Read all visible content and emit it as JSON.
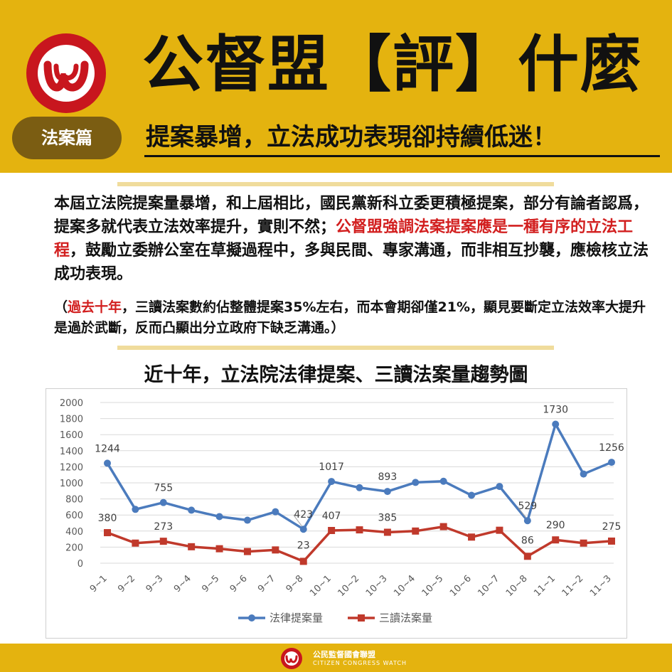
{
  "header": {
    "logo_icon": "citizen-congress-watch-logo-icon",
    "title": "公督盟【評】什麼",
    "category_badge": "法案篇",
    "subtitle": "提案暴增，立法成功表現卻持續低迷！"
  },
  "body": {
    "para_part1": "本屆立法院提案量暴增，和上屆相比，國民黨新科立委更積極提案，部分有論者認爲，提案多就代表立法效率提升，實則不然；",
    "para_highlight": "公督盟強調法案提案應是一種有序的立法工程",
    "para_part2": "，鼓勵立委辦公室在草擬過程中，多與民間、專家溝通，而非相互抄襲，應檢核立法成功表現。",
    "note_open": "（",
    "note_highlight": "過去十年",
    "note_rest": "，三讀法案數約佔整體提案35%左右，而本會期卻僅21%，顯見要斷定立法效率大提升是過於武斷，反而凸顯出分立政府下缺乏溝通。）"
  },
  "footer": {
    "org_name": "公民監督國會聯盟",
    "org_name_en": "CITIZEN CONGRESS WATCH"
  },
  "colors": {
    "brand_gold": "#e4b30f",
    "brand_red": "#c8161e",
    "badge_brown": "#7b5d12",
    "series_blue": "#4b7bbd",
    "series_red": "#c0392b"
  },
  "chart_data": {
    "type": "line",
    "title": "近十年，立法院法律提案、三讀法案量趨勢圖",
    "categories": [
      "9~1",
      "9~2",
      "9~3",
      "9~4",
      "9~5",
      "9~6",
      "9~7",
      "9~8",
      "10~1",
      "10~2",
      "10~3",
      "10~4",
      "10~5",
      "10~6",
      "10~7",
      "10~8",
      "11~1",
      "11~2",
      "11~3"
    ],
    "series": [
      {
        "name": "法律提案量",
        "color": "#4b7bbd",
        "marker": "circle",
        "values": [
          1244,
          670,
          755,
          660,
          580,
          535,
          640,
          423,
          1017,
          940,
          893,
          1005,
          1020,
          845,
          955,
          529,
          1730,
          1110,
          1256
        ],
        "labels": [
          "1244",
          "",
          "755",
          "",
          "",
          "",
          "",
          "423",
          "1017",
          "",
          "893",
          "",
          "",
          "",
          "",
          "529",
          "1730",
          "",
          "1256"
        ]
      },
      {
        "name": "三讀法案量",
        "color": "#c0392b",
        "marker": "square",
        "values": [
          380,
          250,
          273,
          205,
          180,
          145,
          165,
          23,
          407,
          415,
          385,
          400,
          455,
          325,
          410,
          86,
          290,
          250,
          275
        ],
        "labels": [
          "380",
          "",
          "273",
          "",
          "",
          "",
          "",
          "23",
          "407",
          "",
          "385",
          "",
          "",
          "",
          "",
          "86",
          "290",
          "",
          "275"
        ]
      }
    ],
    "yticks": [
      "0",
      "200",
      "400",
      "600",
      "800",
      "1000",
      "1200",
      "1400",
      "1600",
      "1800",
      "2000"
    ],
    "ylim": [
      0,
      2000
    ],
    "grid": true,
    "legend_position": "bottom"
  }
}
